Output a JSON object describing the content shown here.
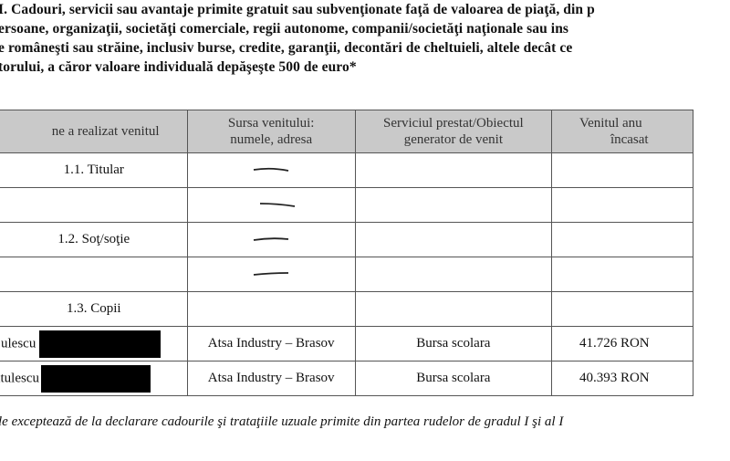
{
  "heading": {
    "lines": [
      "I. Cadouri, servicii sau avantaje primite gratuit sau subvenţionate faţă de valoarea de piaţă, din p",
      "ersoane, organizaţii, societăţi comerciale, regii autonome, companii/societăţi naţionale sau ins",
      "e româneşti sau străine, inclusiv burse, credite, garanţii, decontări de cheltuieli, altele decât ce",
      "torului, a căror valoare individuală depăşeşte 500 de euro*"
    ]
  },
  "table": {
    "headers": [
      "ne a realizat venitul",
      "Sursa venitului:\nnumele, adresa",
      "Serviciul prestat/Obiectul\ngenerator de venit",
      "Venitul anu\nîncasat"
    ],
    "header_lines": [
      [
        "ne a realizat venitul"
      ],
      [
        "Sursa venitului:",
        "numele, adresa"
      ],
      [
        "Serviciul prestat/Obiectul",
        "generator de venit"
      ],
      [
        "Venitul anu",
        "încasat"
      ]
    ],
    "rows": [
      {
        "who": "1.1. Titular",
        "source": "—",
        "service": "",
        "income": ""
      },
      {
        "who": "",
        "source": "—",
        "service": "",
        "income": ""
      },
      {
        "who": "1.2. Soţ/soţie",
        "source": "—",
        "service": "",
        "income": ""
      },
      {
        "who": "",
        "source": "—",
        "service": "",
        "income": ""
      },
      {
        "who": "1.3. Copii",
        "source": "",
        "service": "",
        "income": ""
      },
      {
        "who": "ulescu",
        "source": "Atsa Industry – Brasov",
        "service": "Bursa scolara",
        "income": "41.726 RON"
      },
      {
        "who": "utulescu",
        "source": "Atsa Industry – Brasov",
        "service": "Bursa scolara",
        "income": "40.393 RON"
      }
    ]
  },
  "footnote": "le exceptează de la declarare cadourile şi trataţiile uzuale primite din partea rudelor de gradul I şi al I"
}
